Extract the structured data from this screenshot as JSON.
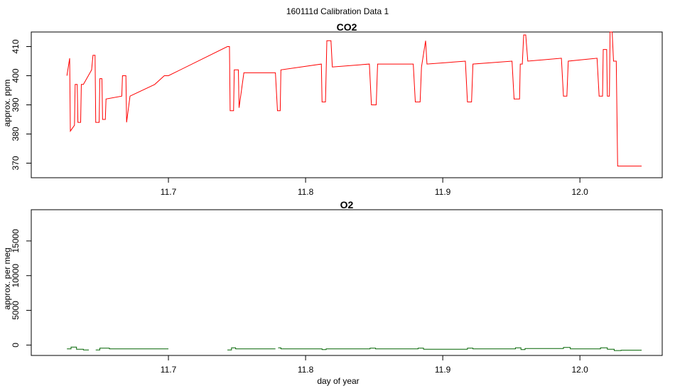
{
  "figure": {
    "title": "160111d   Calibration Data 1"
  },
  "chart_data": [
    {
      "type": "line",
      "title": "CO2",
      "xlabel": "",
      "ylabel": "approx. ppm",
      "xlim": [
        11.6,
        12.06
      ],
      "ylim": [
        365,
        415
      ],
      "x_ticks": [
        11.7,
        11.8,
        11.9,
        12.0
      ],
      "x_tick_labels": [
        "11.7",
        "11.8",
        "11.9",
        "12.0"
      ],
      "y_ticks": [
        370,
        380,
        390,
        400,
        410
      ],
      "y_tick_labels": [
        "370",
        "380",
        "390",
        "400",
        "410"
      ],
      "color": "#ff0000",
      "series": [
        {
          "x": [
            11.626,
            11.628,
            11.6285,
            11.6315,
            11.632,
            11.6335,
            11.634,
            11.636,
            11.6365,
            11.6375,
            11.638,
            11.644,
            11.645,
            11.6465,
            11.647,
            11.6495,
            11.65,
            11.6515,
            11.652,
            11.654,
            11.6545,
            11.666,
            11.6665,
            11.669,
            11.6695,
            11.672,
            11.69,
            11.697,
            11.7,
            11.743,
            11.7445,
            11.745,
            11.7475,
            11.748,
            11.751,
            11.7515,
            11.755,
            11.778,
            11.7795,
            11.7815,
            11.782,
            11.8115,
            11.812,
            11.8145,
            11.8155,
            11.8185,
            11.8195,
            11.8465,
            11.848,
            11.8515,
            11.8525,
            11.8785,
            11.88,
            11.8835,
            11.8845,
            11.8875,
            11.8885,
            11.9165,
            11.918,
            11.921,
            11.922,
            11.9505,
            11.952,
            11.956,
            11.9565,
            11.958,
            11.959,
            11.9605,
            11.962,
            11.9865,
            11.988,
            11.9905,
            11.9915,
            12.0125,
            12.014,
            12.0165,
            12.017,
            12.0195,
            12.02,
            12.0215,
            12.022,
            12.0235,
            12.0245,
            12.0265,
            12.0275,
            12.0295,
            12.045
          ],
          "y": [
            400,
            406,
            381,
            383,
            397,
            397,
            384,
            384,
            397,
            397,
            397,
            402,
            407,
            407,
            384,
            384,
            399,
            399,
            385,
            385,
            392,
            393,
            400,
            400,
            384,
            393,
            397,
            400,
            400,
            410,
            410,
            388,
            388,
            402,
            402,
            389,
            401,
            401,
            388,
            388,
            402,
            404,
            391,
            391,
            412,
            412,
            403,
            404,
            390,
            390,
            404,
            404,
            391,
            391,
            403,
            412,
            404,
            405,
            391,
            391,
            404,
            405,
            392,
            392,
            404,
            404,
            414,
            414,
            405,
            406,
            393,
            393,
            405,
            406,
            393,
            393,
            409,
            409,
            393,
            393,
            415,
            415,
            405,
            405,
            369,
            369,
            369
          ]
        }
      ]
    },
    {
      "type": "line",
      "title": "O2",
      "xlabel": "day of year",
      "ylabel": "approx. per meg",
      "xlim": [
        11.6,
        12.06
      ],
      "ylim": [
        -1500,
        19500
      ],
      "x_ticks": [
        11.7,
        11.8,
        11.9,
        12.0
      ],
      "x_tick_labels": [
        "11.7",
        "11.8",
        "11.9",
        "12.0"
      ],
      "y_ticks": [
        0,
        5000,
        10000,
        15000
      ],
      "y_tick_labels": [
        "0",
        "5000",
        "10000",
        "15000"
      ],
      "color": "#006400",
      "series": [
        {
          "segments": [
            {
              "x": [
                11.626,
                11.629,
                11.629,
                11.633,
                11.633,
                11.638,
                11.638,
                11.642
              ],
              "y": [
                -550,
                -550,
                -300,
                -300,
                -600,
                -600,
                -700,
                -700
              ]
            },
            {
              "x": [
                11.647,
                11.65,
                11.65,
                11.657,
                11.657,
                11.7
              ],
              "y": [
                -700,
                -700,
                -450,
                -450,
                -550,
                -550
              ]
            },
            {
              "x": [
                11.743,
                11.746,
                11.746,
                11.749,
                11.749,
                11.778
              ],
              "y": [
                -700,
                -700,
                -400,
                -400,
                -550,
                -550
              ]
            },
            {
              "x": [
                11.78,
                11.782,
                11.782,
                11.812,
                11.812,
                11.815,
                11.815,
                11.847,
                11.847,
                11.851,
                11.851,
                11.882,
                11.882,
                11.886,
                11.886,
                11.918,
                11.918,
                11.922,
                11.922,
                11.953,
                11.953,
                11.957,
                11.957,
                11.96,
                11.96,
                11.988,
                11.988,
                11.993,
                11.993,
                12.015,
                12.015,
                12.02,
                12.02,
                12.025,
                12.025,
                12.03,
                12.03,
                12.045
              ],
              "y": [
                -400,
                -400,
                -550,
                -550,
                -650,
                -650,
                -550,
                -550,
                -450,
                -450,
                -550,
                -550,
                -450,
                -450,
                -600,
                -600,
                -450,
                -450,
                -550,
                -550,
                -400,
                -400,
                -650,
                -650,
                -500,
                -500,
                -350,
                -350,
                -550,
                -550,
                -400,
                -400,
                -600,
                -600,
                -800,
                -800,
                -750,
                -750
              ]
            }
          ]
        }
      ]
    }
  ]
}
